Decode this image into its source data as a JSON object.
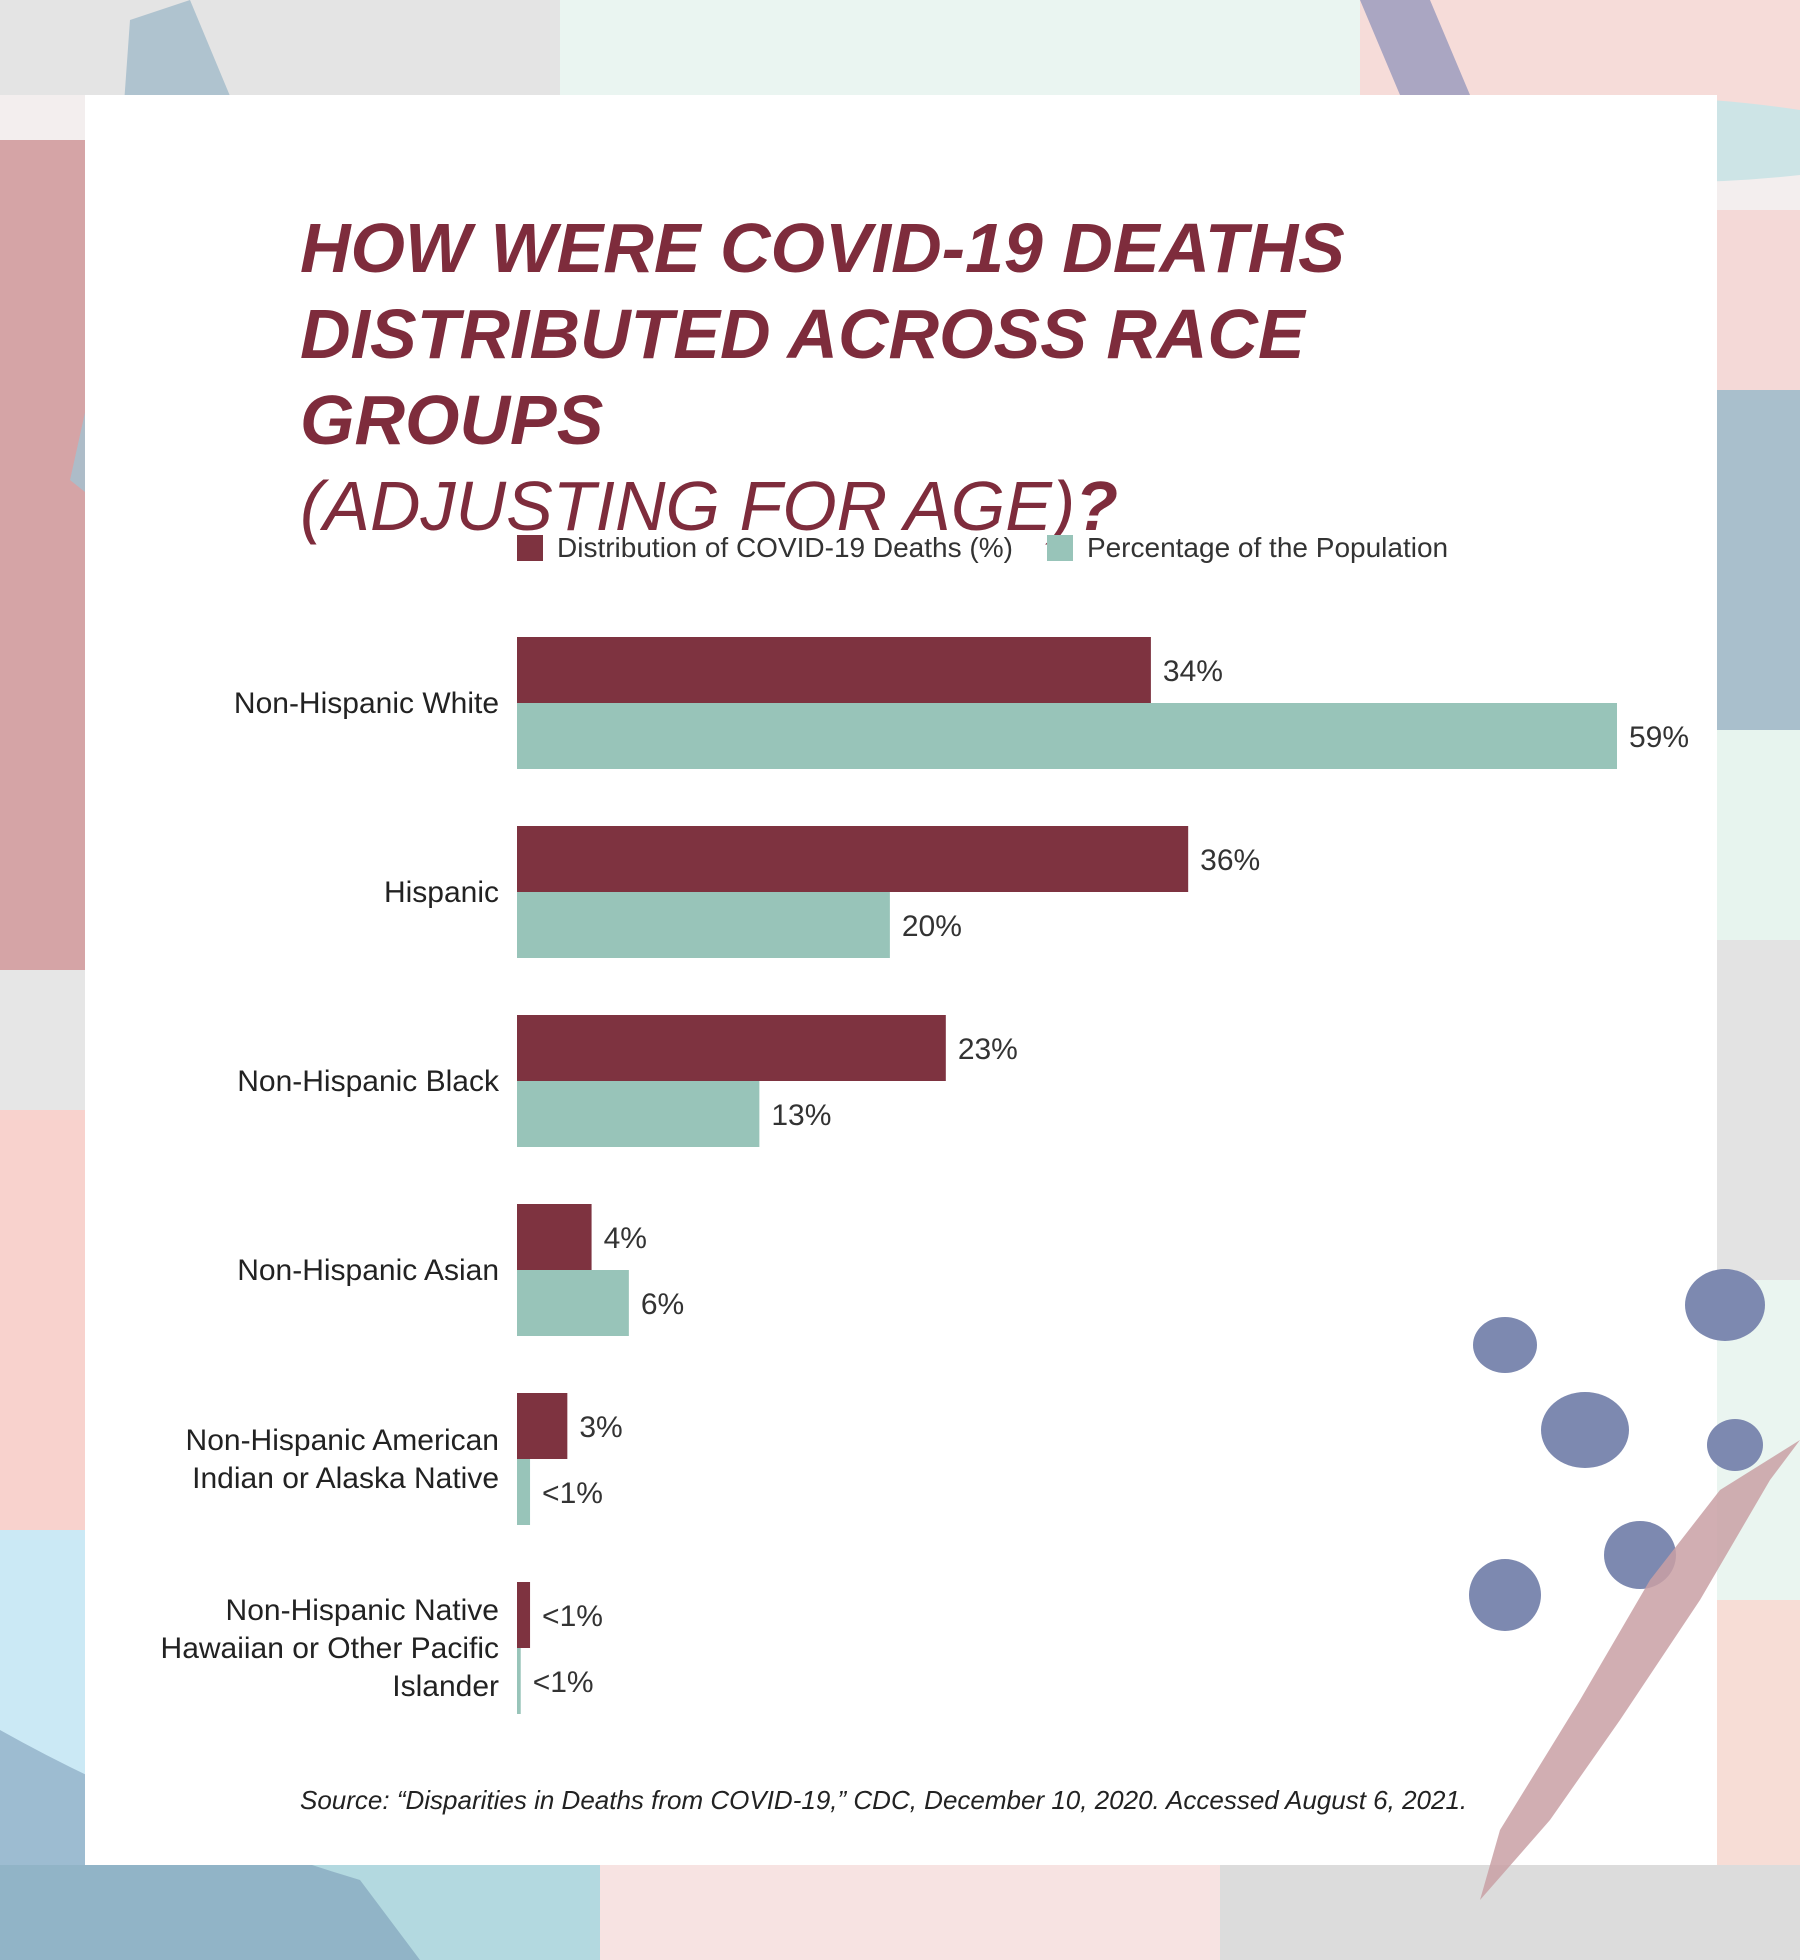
{
  "colors": {
    "deaths": "#7e3340",
    "population": "#98c4b9",
    "title": "#7e2c3c"
  },
  "title": {
    "line1": "HOW WERE COVID-19 DEATHS",
    "line2": "DISTRIBUTED ACROSS RACE GROUPS",
    "line3": "(ADJUSTING FOR AGE)",
    "punct": "?"
  },
  "legend": {
    "deaths": "Distribution of COVID-19 Deaths (%)",
    "population": "Percentage of the Population"
  },
  "source": "Source: “Disparities in Deaths from COVID-19,” CDC, December 10, 2020. Accessed August 6, 2021.",
  "chart_data": {
    "type": "bar",
    "orientation": "horizontal",
    "title": "HOW WERE COVID-19 DEATHS DISTRIBUTED ACROSS RACE GROUPS (ADJUSTING FOR AGE)?",
    "xlim": [
      0,
      60
    ],
    "grid": false,
    "legend_position": "top",
    "categories": [
      [
        "Non-Hispanic White"
      ],
      [
        "Hispanic"
      ],
      [
        "Non-Hispanic Black"
      ],
      [
        "Non-Hispanic Asian"
      ],
      [
        "Non-Hispanic American",
        "Indian or Alaska Native"
      ],
      [
        "Non-Hispanic Native",
        "Hawaiian or Other Pacific",
        "Islander"
      ]
    ],
    "series": [
      {
        "name": "Distribution of COVID-19 Deaths (%)",
        "values": [
          34,
          36,
          23,
          4,
          2.7,
          0.7
        ],
        "labels": [
          "34%",
          "36%",
          "23%",
          "4%",
          "3%",
          "<1%"
        ]
      },
      {
        "name": "Percentage of the Population",
        "values": [
          59,
          20,
          13,
          6,
          0.7,
          0.2
        ],
        "labels": [
          "59%",
          "20%",
          "13%",
          "6%",
          "<1%",
          "<1%"
        ]
      }
    ]
  }
}
